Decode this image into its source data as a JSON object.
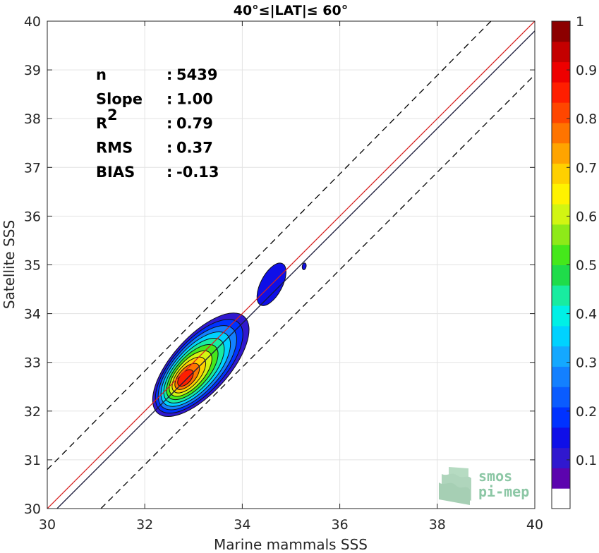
{
  "chart_data": {
    "type": "contour-density",
    "title": "40°≤|LAT|≤ 60°",
    "xlabel": "Marine mammals SSS",
    "ylabel": "Satellite SSS",
    "xlim": [
      30,
      40
    ],
    "ylim": [
      30,
      40
    ],
    "xticks": [
      "30",
      "32",
      "34",
      "36",
      "38",
      "40"
    ],
    "yticks": [
      "30",
      "31",
      "32",
      "33",
      "34",
      "35",
      "36",
      "37",
      "38",
      "39",
      "40"
    ],
    "grid": true,
    "stats": [
      {
        "label": "n",
        "sep": ":",
        "value": "5439"
      },
      {
        "label": "Slope",
        "sep": ":",
        "value": "1.00"
      },
      {
        "label": "R",
        "sup": "2",
        "sep": ":",
        "value": "0.79"
      },
      {
        "label": "RMS",
        "sep": ":",
        "value": "0.37"
      },
      {
        "label": "BIAS",
        "sep": ":",
        "value": "-0.13"
      }
    ],
    "lines": [
      {
        "kind": "one-to-one",
        "color": "#d62020",
        "points": [
          [
            30,
            30
          ],
          [
            40,
            40
          ]
        ]
      },
      {
        "kind": "regression",
        "color": "#1a1a3a",
        "points": [
          [
            30.2,
            30
          ],
          [
            40,
            39.8
          ]
        ]
      },
      {
        "kind": "dashed-upper",
        "color": "#000000",
        "points": [
          [
            30,
            30.8
          ],
          [
            39.1,
            40
          ]
        ]
      },
      {
        "kind": "dashed-lower",
        "color": "#000000",
        "points": [
          [
            31.1,
            30
          ],
          [
            40,
            38.9
          ]
        ]
      }
    ],
    "density_peak": {
      "x": 32.8,
      "y": 32.65
    },
    "secondary_clusters": [
      {
        "x": 34.6,
        "y": 34.6,
        "level": 0.1
      },
      {
        "x": 35.27,
        "y": 34.97,
        "level": 0.1
      }
    ],
    "colorbar": {
      "range": [
        0,
        1
      ],
      "ticks": [
        "0.1",
        "0.2",
        "0.3",
        "0.4",
        "0.5",
        "0.6",
        "0.7",
        "0.8",
        "0.9",
        "1"
      ],
      "colors": [
        "#ffffff",
        "#5c04ae",
        "#3018cf",
        "#0f0fe8",
        "#0032ff",
        "#0a5cff",
        "#1380ff",
        "#14a8ff",
        "#00d2ff",
        "#00f0e6",
        "#18eca0",
        "#1fdc4a",
        "#45e81b",
        "#8eea18",
        "#d2f512",
        "#fff200",
        "#ffd000",
        "#ffa400",
        "#ff7400",
        "#ff4600",
        "#ff1e00",
        "#ee0000",
        "#c40000",
        "#8c0000"
      ]
    }
  },
  "logo": {
    "line1": "smos",
    "line2": "pi-mep"
  }
}
